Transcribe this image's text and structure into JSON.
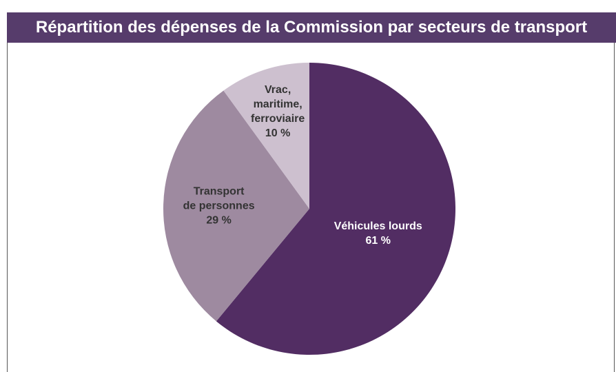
{
  "chart_data": {
    "type": "pie",
    "title": "Répartition des dépenses de la Commission par secteurs de transport",
    "categories": [
      "Véhicules lourds",
      "Transport\nde personnes",
      "Vrac,\nmaritime,\nferroviaire"
    ],
    "values": [
      61,
      29,
      10
    ],
    "value_labels": [
      "61 %",
      "29 %",
      "10 %"
    ],
    "colors": [
      "#522d63",
      "#9e8aa0",
      "#cdc0cf"
    ]
  }
}
